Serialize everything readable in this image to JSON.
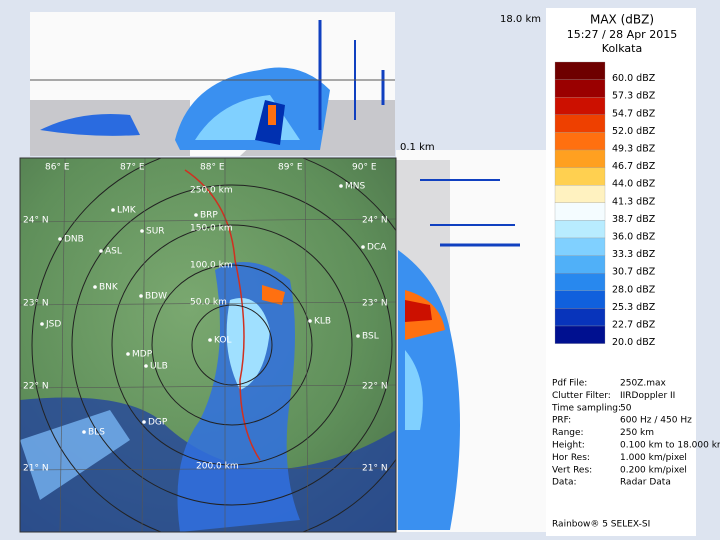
{
  "header": {
    "title": "MAX (dBZ)",
    "time": "15:27 / 28 Apr 2015",
    "site": "Kolkata"
  },
  "top_panel": {
    "height_label": "18.0 km"
  },
  "side_panel": {
    "height_label": "0.1 km"
  },
  "legend": {
    "items": [
      {
        "label": "60.0 dBZ",
        "color": "#6e0000"
      },
      {
        "label": "57.3 dBZ",
        "color": "#9a0000"
      },
      {
        "label": "54.7 dBZ",
        "color": "#cc1000"
      },
      {
        "label": "52.0 dBZ",
        "color": "#ee4000"
      },
      {
        "label": "49.3 dBZ",
        "color": "#ff7010"
      },
      {
        "label": "46.7 dBZ",
        "color": "#ffa020"
      },
      {
        "label": "44.0 dBZ",
        "color": "#ffd050"
      },
      {
        "label": "41.3 dBZ",
        "color": "#fff2c0"
      },
      {
        "label": "38.7 dBZ",
        "color": "#f4fcff"
      },
      {
        "label": "36.0 dBZ",
        "color": "#b8ecff"
      },
      {
        "label": "33.3 dBZ",
        "color": "#80d0ff"
      },
      {
        "label": "30.7 dBZ",
        "color": "#50b0f8"
      },
      {
        "label": "28.0 dBZ",
        "color": "#2888ee"
      },
      {
        "label": "25.3 dBZ",
        "color": "#1060dd"
      },
      {
        "label": "22.7 dBZ",
        "color": "#0834bb"
      },
      {
        "label": "20.0 dBZ",
        "color": "#001090"
      }
    ]
  },
  "map": {
    "lon_labels": [
      "86° E",
      "87° E",
      "88° E",
      "89° E",
      "90° E"
    ],
    "lat_labels": [
      "24° N",
      "23° N",
      "22° N",
      "21° N"
    ],
    "range_labels": [
      "250.0 km",
      "150.0 km",
      "100.0 km",
      "50.0 km",
      "200.0 km"
    ],
    "stations": [
      "MNS",
      "BRP",
      "LMK",
      "SUR",
      "DNB",
      "DCA",
      "ASL",
      "BNK",
      "BDW",
      "KOL",
      "KLB",
      "BSL",
      "JSD",
      "MDP",
      "ULB",
      "BLS",
      "DGP"
    ]
  },
  "info": [
    {
      "key": "Pdf File:",
      "value": "250Z.max"
    },
    {
      "key": "Clutter Filter:",
      "value": "IIRDoppler II"
    },
    {
      "key": "Time sampling:",
      "value": "50"
    },
    {
      "key": "PRF:",
      "value": "600 Hz / 450 Hz"
    },
    {
      "key": "Range:",
      "value": "250 km"
    },
    {
      "key": "Height:",
      "value": "0.100 km to 18.000 km"
    },
    {
      "key": "Hor Res:",
      "value": "1.000 km/pixel"
    },
    {
      "key": "Vert Res:",
      "value": "0.200 km/pixel"
    },
    {
      "key": "Data:",
      "value": "Radar Data"
    }
  ],
  "footer": "Rainbow® 5 SELEX-SI"
}
